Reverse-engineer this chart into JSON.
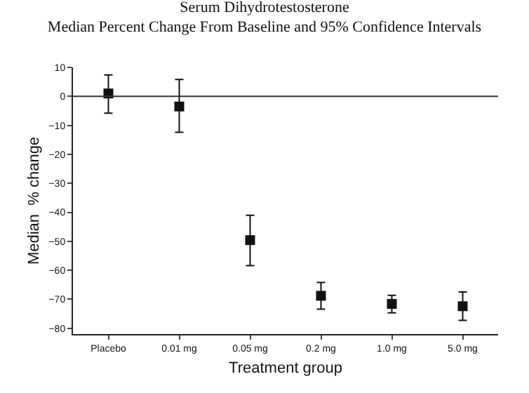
{
  "chart_data": {
    "type": "scatter",
    "title": "Serum Dihydrotestosterone",
    "subtitle": "Median Percent Change From Baseline and 95% Confidence Intervals",
    "xlabel": "Treatment group",
    "ylabel": "Median  % change",
    "categories": [
      "Placebo",
      "0.01 mg",
      "0.05 mg",
      "0.2 mg",
      "1.0 mg",
      "5.0 mg"
    ],
    "values": [
      1,
      -3.5,
      -49.6,
      -68.8,
      -71.6,
      -72.4
    ],
    "errors": [
      [
        -5.8,
        7.4
      ],
      [
        -12.4,
        5.8
      ],
      [
        -58.4,
        -41
      ],
      [
        -73.4,
        -64.2
      ],
      [
        -74.7,
        -68.6
      ],
      [
        -77.3,
        -67.5
      ]
    ],
    "color": "#111111",
    "marker": "square",
    "ylim": [
      -82,
      10
    ],
    "yticks": [
      -80,
      -70,
      -60,
      -50,
      -40,
      -30,
      -20,
      -10,
      0,
      10
    ],
    "ref_lines": [
      {
        "axis": "y",
        "value": 0,
        "color": "#333333"
      }
    ],
    "grid": false,
    "legend": false
  }
}
